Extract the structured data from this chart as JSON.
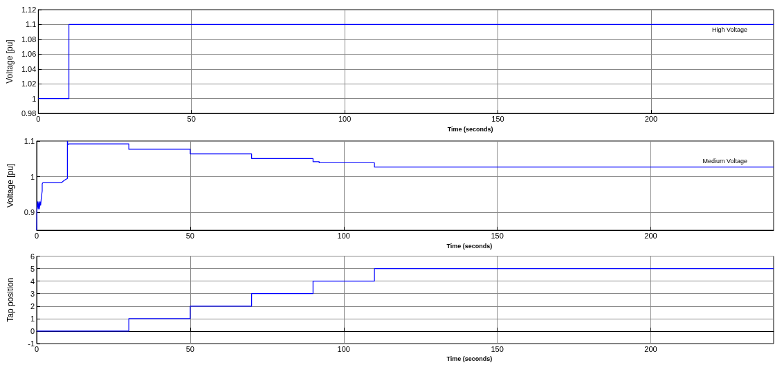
{
  "chart_data": [
    {
      "type": "step",
      "ylabel": "Voltage [pu]",
      "xlabel": "Time (seconds)",
      "annotations": [
        "High Voltage"
      ],
      "x": [
        0,
        10,
        240
      ],
      "series": [
        {
          "color": "#0000ff",
          "values": [
            1,
            1.1,
            1.1
          ]
        }
      ],
      "xlim": [
        0,
        240
      ],
      "xticks": [
        0,
        50,
        100,
        150,
        200
      ],
      "ylim": [
        0.98,
        1.12
      ],
      "yticks": [
        0.98,
        1,
        1.02,
        1.04,
        1.06,
        1.08,
        1.1,
        1.12
      ],
      "grid": true,
      "marker": "none",
      "line_style": "solid"
    },
    {
      "type": "line",
      "ylabel": "Voltage [pu]",
      "xlabel": "Time (seconds)",
      "annotations": [
        "Medium Voltage"
      ],
      "x": [
        0,
        0.1,
        0.3,
        0.5,
        0.7,
        0.9,
        1.1,
        1.3,
        1.5,
        1.8,
        1.8,
        2,
        8,
        9,
        10,
        10,
        10.2,
        10.5,
        30,
        30,
        50,
        50,
        70,
        70,
        90,
        90,
        92,
        92,
        110,
        110,
        240
      ],
      "series": [
        {
          "color": "#0000ff",
          "values": [
            0.85,
            0.91,
            0.93,
            0.91,
            0.93,
            0.91,
            0.93,
            0.92,
            0.94,
            0.96,
            0.98,
            0.983,
            0.983,
            0.99,
            0.995,
            1.1,
            1.09,
            1.092,
            1.092,
            1.077,
            1.077,
            1.064,
            1.064,
            1.051,
            1.051,
            1.042,
            1.042,
            1.039,
            1.039,
            1.027,
            1.027
          ]
        }
      ],
      "xlim": [
        0,
        240
      ],
      "xticks": [
        0,
        50,
        100,
        150,
        200
      ],
      "ylim": [
        0.85,
        1.1
      ],
      "yticks": [
        0.9,
        1,
        1.1
      ],
      "grid": true,
      "marker": "none",
      "line_style": "solid"
    },
    {
      "type": "step",
      "ylabel": "Tap position",
      "xlabel": "Time (seconds)",
      "x": [
        0,
        30,
        50,
        70,
        90,
        110,
        240
      ],
      "series": [
        {
          "color": "#0000ff",
          "values": [
            0,
            1,
            2,
            3,
            4,
            5,
            5
          ]
        }
      ],
      "xlim": [
        0,
        240
      ],
      "xticks": [
        0,
        50,
        100,
        150,
        200
      ],
      "ylim": [
        -1,
        6
      ],
      "yticks": [
        -1,
        0,
        1,
        2,
        3,
        4,
        5,
        6
      ],
      "grid": true,
      "marker": "none",
      "line_style": "solid"
    }
  ]
}
